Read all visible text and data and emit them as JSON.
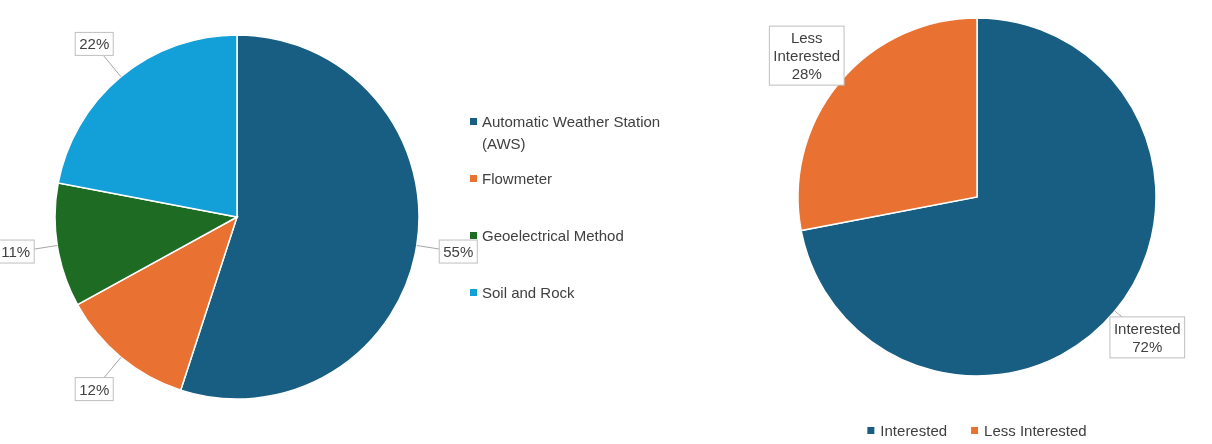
{
  "chart_data": [
    {
      "type": "pie",
      "categories": [
        "Automatic Weather Station (AWS)",
        "Flowmeter",
        "Geoelectrical Method",
        "Soil and Rock"
      ],
      "values": [
        55,
        12,
        11,
        22
      ],
      "colors": [
        "#175e82",
        "#e97131",
        "#1e6b24",
        "#139fd8"
      ],
      "value_labels": [
        "55%",
        "12%",
        "11%",
        "22%"
      ],
      "legend": "right"
    },
    {
      "type": "pie",
      "categories": [
        "Interested",
        "Less Interested"
      ],
      "values": [
        72,
        28
      ],
      "colors": [
        "#175e82",
        "#e97131"
      ],
      "value_labels": [
        "Interested\n72%",
        "Less\nInterested\n28%"
      ],
      "legend": "bottom"
    }
  ]
}
